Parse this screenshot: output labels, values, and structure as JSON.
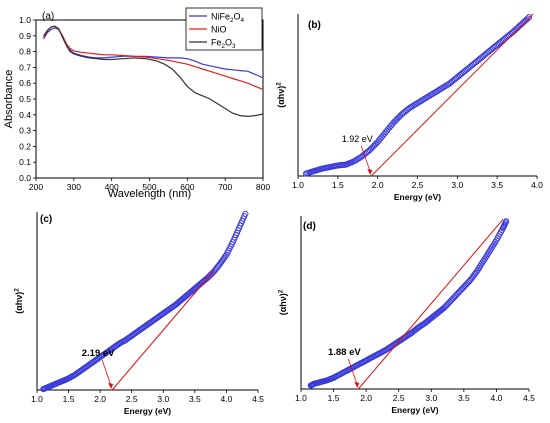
{
  "colors": {
    "nife2o4": "#3b3bd6",
    "nio": "#e02020",
    "fe2o3": "#333333",
    "tauc_markers": "#3a3ad8",
    "fit_line": "#e01010"
  },
  "chart_data": [
    {
      "id": "a",
      "panel_label": "(a)",
      "type": "line",
      "xlabel": "Wavelength (nm)",
      "ylabel": "Absorbance",
      "xlim": [
        200,
        800
      ],
      "ylim": [
        0,
        1.0
      ],
      "xticks": [
        "200",
        "300",
        "400",
        "500",
        "600",
        "700",
        "800"
      ],
      "yticks": [
        "0.0",
        "0.1",
        "0.2",
        "0.3",
        "0.4",
        "0.5",
        "0.6",
        "0.7",
        "0.8",
        "0.9",
        "1.0"
      ],
      "legend_position": "top-right",
      "legend": [
        {
          "label": "NiFe₂O₄",
          "color_key": "nife2o4"
        },
        {
          "label": "NiO",
          "color_key": "nio"
        },
        {
          "label": "Fe₂O₃",
          "color_key": "fe2o3"
        }
      ],
      "series": [
        {
          "name": "NiFe₂O₄",
          "color_key": "nife2o4",
          "x": [
            220,
            230,
            240,
            250,
            260,
            270,
            280,
            290,
            300,
            320,
            340,
            360,
            380,
            400,
            430,
            460,
            490,
            520,
            550,
            580,
            600,
            620,
            640,
            660,
            680,
            700,
            720,
            740,
            760,
            780,
            800
          ],
          "y": [
            0.88,
            0.92,
            0.94,
            0.95,
            0.94,
            0.9,
            0.85,
            0.81,
            0.79,
            0.775,
            0.765,
            0.76,
            0.76,
            0.765,
            0.77,
            0.77,
            0.77,
            0.765,
            0.76,
            0.76,
            0.755,
            0.74,
            0.72,
            0.71,
            0.7,
            0.69,
            0.685,
            0.68,
            0.675,
            0.655,
            0.635
          ]
        },
        {
          "name": "NiO",
          "color_key": "nio",
          "x": [
            220,
            230,
            240,
            250,
            260,
            270,
            280,
            290,
            300,
            320,
            340,
            360,
            380,
            400,
            430,
            460,
            490,
            520,
            550,
            580,
            600,
            620,
            640,
            660,
            680,
            700,
            720,
            740,
            760,
            780,
            800
          ],
          "y": [
            0.89,
            0.93,
            0.955,
            0.96,
            0.94,
            0.9,
            0.85,
            0.82,
            0.805,
            0.795,
            0.79,
            0.785,
            0.78,
            0.78,
            0.775,
            0.77,
            0.765,
            0.755,
            0.745,
            0.73,
            0.72,
            0.705,
            0.69,
            0.675,
            0.66,
            0.645,
            0.63,
            0.615,
            0.6,
            0.58,
            0.56
          ]
        },
        {
          "name": "Fe₂O₃",
          "color_key": "fe2o3",
          "x": [
            220,
            230,
            240,
            250,
            260,
            270,
            280,
            290,
            300,
            320,
            340,
            360,
            380,
            400,
            430,
            460,
            490,
            520,
            540,
            560,
            580,
            600,
            620,
            640,
            660,
            680,
            700,
            720,
            740,
            760,
            780,
            800
          ],
          "y": [
            0.9,
            0.935,
            0.955,
            0.96,
            0.945,
            0.89,
            0.84,
            0.8,
            0.785,
            0.77,
            0.76,
            0.755,
            0.75,
            0.75,
            0.755,
            0.76,
            0.755,
            0.74,
            0.72,
            0.69,
            0.64,
            0.58,
            0.54,
            0.52,
            0.5,
            0.47,
            0.44,
            0.41,
            0.395,
            0.39,
            0.395,
            0.405
          ]
        }
      ]
    },
    {
      "id": "b",
      "panel_label": "(b)",
      "type": "scatter",
      "xlabel": "Energy (eV)",
      "ylabel": "(αhν)²",
      "xlim": [
        1.0,
        4.0
      ],
      "ylim": [
        0,
        1
      ],
      "xticks": [
        "1.0",
        "1.5",
        "2.0",
        "2.5",
        "3.0",
        "3.5",
        "4.0"
      ],
      "annotation": {
        "text": "1.92 eV",
        "x": 1.92
      },
      "fit_line": {
        "x": [
          1.92,
          3.95
        ],
        "y": [
          0.0,
          1.0
        ]
      },
      "series": [
        {
          "name": "",
          "color_key": "tauc_markers",
          "x": [
            1.1,
            1.2,
            1.3,
            1.4,
            1.5,
            1.6,
            1.7,
            1.8,
            1.9,
            2.0,
            2.1,
            2.2,
            2.3,
            2.4,
            2.5,
            2.6,
            2.7,
            2.8,
            2.9,
            3.0,
            3.1,
            3.2,
            3.3,
            3.4,
            3.5,
            3.6,
            3.7,
            3.8,
            3.9
          ],
          "y": [
            0.015,
            0.03,
            0.045,
            0.055,
            0.065,
            0.07,
            0.09,
            0.12,
            0.16,
            0.21,
            0.27,
            0.33,
            0.38,
            0.42,
            0.45,
            0.48,
            0.51,
            0.54,
            0.57,
            0.61,
            0.65,
            0.69,
            0.73,
            0.77,
            0.81,
            0.85,
            0.89,
            0.935,
            0.98
          ]
        }
      ]
    },
    {
      "id": "c",
      "panel_label": "(c)",
      "type": "scatter",
      "xlabel": "Energy (eV)",
      "ylabel": "(αhν)²",
      "xlim": [
        1.0,
        4.5
      ],
      "ylim": [
        0,
        1
      ],
      "xticks": [
        "1.0",
        "1.5",
        "2.0",
        "2.5",
        "3.0",
        "3.5",
        "4.0",
        "4.5"
      ],
      "annotation": {
        "text": "2.19 eV",
        "x": 2.19
      },
      "fit_line": {
        "x": [
          2.19,
          3.8
        ],
        "y": [
          0.0,
          0.67
        ]
      },
      "series": [
        {
          "name": "",
          "color_key": "tauc_markers",
          "x": [
            1.1,
            1.2,
            1.3,
            1.4,
            1.5,
            1.6,
            1.7,
            1.8,
            1.9,
            2.0,
            2.1,
            2.2,
            2.3,
            2.4,
            2.5,
            2.6,
            2.7,
            2.8,
            2.9,
            3.0,
            3.1,
            3.2,
            3.3,
            3.4,
            3.5,
            3.6,
            3.7,
            3.8,
            3.9,
            4.0,
            4.1,
            4.2,
            4.3
          ],
          "y": [
            0.005,
            0.02,
            0.035,
            0.05,
            0.065,
            0.085,
            0.11,
            0.135,
            0.16,
            0.185,
            0.21,
            0.235,
            0.26,
            0.28,
            0.305,
            0.33,
            0.355,
            0.38,
            0.405,
            0.43,
            0.455,
            0.48,
            0.51,
            0.54,
            0.57,
            0.6,
            0.63,
            0.665,
            0.71,
            0.76,
            0.83,
            0.91,
            0.99
          ]
        }
      ]
    },
    {
      "id": "d",
      "panel_label": "(d)",
      "type": "scatter",
      "xlabel": "Energy (eV)",
      "ylabel": "(αhν)²",
      "xlim": [
        1.0,
        4.5
      ],
      "ylim": [
        0,
        1
      ],
      "xticks": [
        "1.0",
        "1.5",
        "2.0",
        "2.5",
        "3.0",
        "3.5",
        "4.0",
        "4.5"
      ],
      "annotation": {
        "text": "1.88 eV",
        "x": 1.88
      },
      "fit_line": {
        "x": [
          1.88,
          4.1
        ],
        "y": [
          0.0,
          0.98
        ]
      },
      "series": [
        {
          "name": "",
          "color_key": "tauc_markers",
          "x": [
            1.15,
            1.2,
            1.3,
            1.4,
            1.5,
            1.6,
            1.7,
            1.8,
            1.9,
            2.0,
            2.1,
            2.2,
            2.3,
            2.4,
            2.5,
            2.6,
            2.7,
            2.8,
            2.9,
            3.0,
            3.1,
            3.2,
            3.3,
            3.4,
            3.5,
            3.6,
            3.7,
            3.8,
            3.9,
            4.0,
            4.1,
            4.15
          ],
          "y": [
            0.02,
            0.03,
            0.04,
            0.05,
            0.065,
            0.085,
            0.105,
            0.125,
            0.145,
            0.165,
            0.185,
            0.205,
            0.225,
            0.25,
            0.275,
            0.3,
            0.325,
            0.355,
            0.38,
            0.41,
            0.44,
            0.47,
            0.51,
            0.55,
            0.59,
            0.63,
            0.68,
            0.74,
            0.8,
            0.86,
            0.93,
            0.97
          ]
        }
      ]
    }
  ]
}
